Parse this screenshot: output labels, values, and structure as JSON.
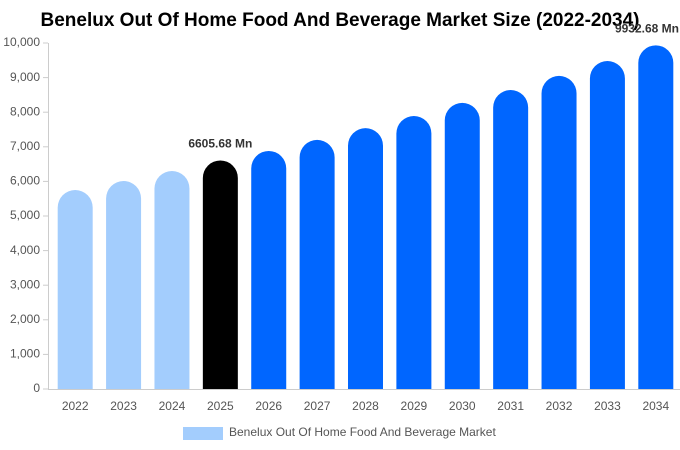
{
  "chart_data": {
    "type": "bar",
    "title": "Benelux Out Of Home Food And Beverage Market Size (2022-2034)",
    "categories": [
      "2022",
      "2023",
      "2024",
      "2025",
      "2026",
      "2027",
      "2028",
      "2029",
      "2030",
      "2031",
      "2032",
      "2033",
      "2034"
    ],
    "series": [
      {
        "name": "Benelux Out Of Home Food And Beverage Market",
        "color": "#a3cdfd",
        "values": [
          5750,
          6010,
          6300,
          6605.68,
          6880,
          7200,
          7540,
          7890,
          8270,
          8640,
          9050,
          9480,
          9932.68
        ],
        "value_labels": [
          null,
          null,
          null,
          "6605.68 Mn",
          null,
          null,
          null,
          null,
          null,
          null,
          null,
          null,
          "9932.68 Mn"
        ],
        "colors": [
          "#a3cdfd",
          "#a3cdfd",
          "#a3cdfd",
          "#000000",
          "#0066ff",
          "#0066ff",
          "#0066ff",
          "#0066ff",
          "#0066ff",
          "#0066ff",
          "#0066ff",
          "#0066ff",
          "#0066ff"
        ]
      }
    ],
    "ylim": [
      0,
      10000
    ],
    "yticks": [
      0,
      {
        "value": 1000,
        "label": "1,000"
      },
      {
        "value": 2000,
        "label": "2,000"
      },
      {
        "value": 3000,
        "label": "3,000"
      },
      {
        "value": 4000,
        "label": "4,000"
      },
      {
        "value": 5000,
        "label": "5,000"
      },
      {
        "value": 6000,
        "label": "6,000"
      },
      {
        "value": 7000,
        "label": "7,000"
      },
      {
        "value": 8000,
        "label": "8,000"
      },
      {
        "value": 9000,
        "label": "9,000"
      },
      {
        "value": 10000,
        "label": "10,000"
      }
    ],
    "grid": false
  }
}
